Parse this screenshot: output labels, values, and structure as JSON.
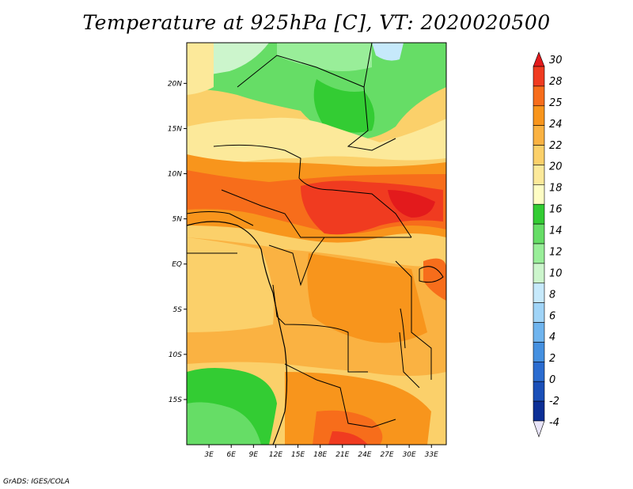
{
  "title": "Temperature at 925hPa [C], VT: 2020020500",
  "credit": "GrADS: IGES/COLA",
  "map": {
    "lat_labels": [
      "20N",
      "15N",
      "10N",
      "5N",
      "EQ",
      "5S",
      "10S",
      "15S"
    ],
    "lat_values": [
      20,
      15,
      10,
      5,
      0,
      -5,
      -10,
      -15
    ],
    "lon_labels": [
      "3E",
      "6E",
      "9E",
      "12E",
      "15E",
      "18E",
      "21E",
      "24E",
      "27E",
      "30E",
      "33E"
    ],
    "lon_values": [
      3,
      6,
      9,
      12,
      15,
      18,
      21,
      24,
      27,
      30,
      33
    ],
    "lon_range": [
      0,
      35
    ],
    "lat_range": [
      -20,
      24.5
    ]
  },
  "colorbar": {
    "labels": [
      "30",
      "28",
      "25",
      "24",
      "22",
      "20",
      "18",
      "16",
      "14",
      "12",
      "10",
      "8",
      "6",
      "4",
      "2",
      "0",
      "-2",
      "-4"
    ],
    "colors": [
      "#e31a1c",
      "#f03b20",
      "#f76d1b",
      "#f8951c",
      "#fab242",
      "#fbd06a",
      "#fce99a",
      "#fefdc4",
      "#33cc33",
      "#66dd66",
      "#99ee99",
      "#ccf5cc",
      "#c6e9fb",
      "#a0d4f7",
      "#6fb4ee",
      "#4590e0",
      "#2b6cd0",
      "#1a4fb8",
      "#0c2f96",
      "#0a1a70"
    ]
  }
}
